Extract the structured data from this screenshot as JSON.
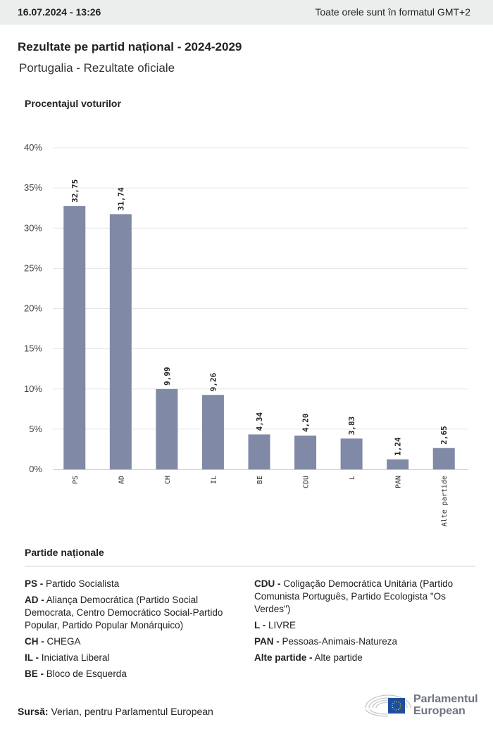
{
  "header": {
    "datetime": "16.07.2024 - 13:26",
    "timezone_note": "Toate orele sunt în formatul GMT+2"
  },
  "title": "Rezultate pe partid național - 2024-2029",
  "subtitle": "Portugalia - Rezultate oficiale",
  "chart_data": {
    "type": "bar",
    "ylabel": "Procentajul voturilor",
    "categories": [
      "PS",
      "AD",
      "CH",
      "IL",
      "BE",
      "CDU",
      "L",
      "PAN",
      "Alte partide"
    ],
    "values": [
      32.75,
      31.74,
      9.99,
      9.26,
      4.34,
      4.2,
      3.83,
      1.24,
      2.65
    ],
    "value_labels": [
      "32,75",
      "31,74",
      "9,99",
      "9,26",
      "4,34",
      "4,20",
      "3,83",
      "1,24",
      "2,65"
    ],
    "ylim": [
      0,
      40
    ],
    "yticks": [
      "0%",
      "5%",
      "10%",
      "15%",
      "20%",
      "25%",
      "30%",
      "35%",
      "40%"
    ],
    "grid": true,
    "bar_color": "#8089a6"
  },
  "legend": {
    "title": "Partide naționale",
    "left": [
      {
        "abbr": "PS -",
        "name": "Partido Socialista"
      },
      {
        "abbr": "AD -",
        "name": "Aliança Democrática (Partido Social Democrata, Centro Democrático Social-Partido Popular, Partido Popular Monárquico)"
      },
      {
        "abbr": "CH -",
        "name": "CHEGA"
      },
      {
        "abbr": "IL -",
        "name": "Iniciativa Liberal"
      },
      {
        "abbr": "BE -",
        "name": "Bloco de Esquerda"
      }
    ],
    "right": [
      {
        "abbr": "CDU -",
        "name": "Coligação Democrática Unitária (Partido Comunista Português, Partido Ecologista \"Os Verdes\")"
      },
      {
        "abbr": "L -",
        "name": "LIVRE"
      },
      {
        "abbr": "PAN -",
        "name": "Pessoas-Animais-Natureza"
      },
      {
        "abbr": "Alte partide -",
        "name": "Alte partide"
      }
    ]
  },
  "source": {
    "label": "Sursă:",
    "text": "Verian, pentru Parlamentul European"
  },
  "logo": {
    "line1": "Parlamentul",
    "line2": "European",
    "color": "#6d7380",
    "flag": "#1f4f9c"
  }
}
